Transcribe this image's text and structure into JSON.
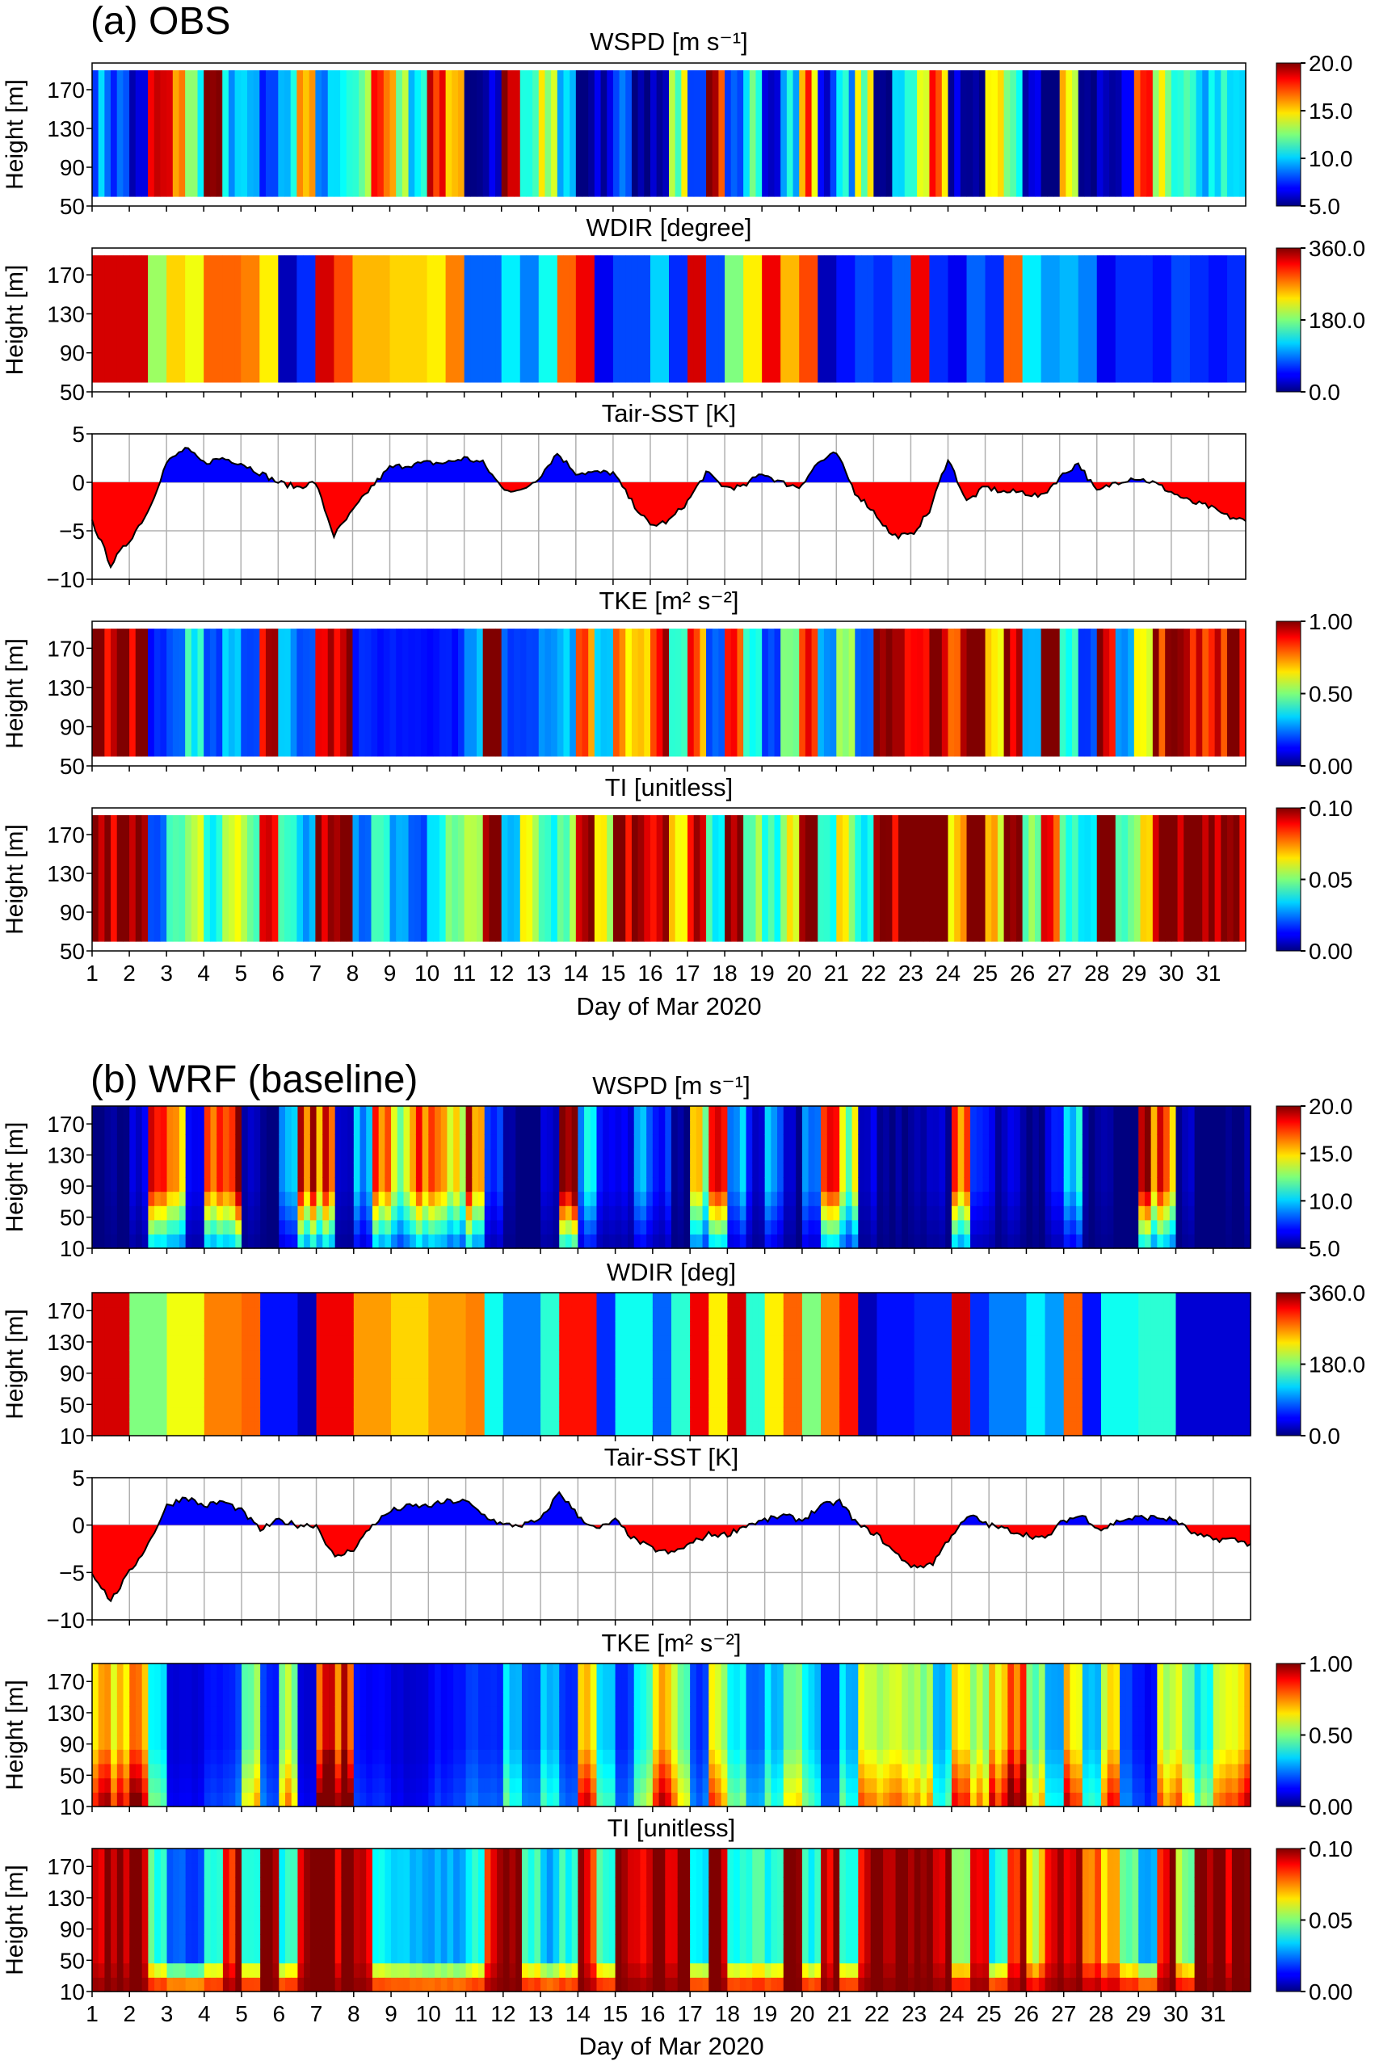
{
  "figure": {
    "panel_a_label": "(a) OBS",
    "panel_b_label": "(b) WRF (baseline)",
    "xlabel": "Day of Mar 2020",
    "x_ticks": [
      "1",
      "2",
      "3",
      "4",
      "5",
      "6",
      "7",
      "8",
      "9",
      "10",
      "11",
      "12",
      "13",
      "14",
      "15",
      "16",
      "17",
      "18",
      "19",
      "20",
      "21",
      "22",
      "23",
      "24",
      "25",
      "26",
      "27",
      "28",
      "29",
      "30",
      "31"
    ],
    "xlim": [
      1,
      32
    ],
    "x_step_days": 0.5
  },
  "chart_data": [
    {
      "id": "obs-wspd",
      "type": "heatmap",
      "title": "WSPD [m s⁻¹]",
      "ylabel": "Height [m]",
      "yticks": [
        "50",
        "90",
        "130",
        "170"
      ],
      "ylim": [
        50,
        197.5
      ],
      "heights": [
        60,
        190
      ],
      "clim": [
        5,
        20
      ],
      "cbar_ticks": [
        "5.0",
        "10.0",
        "15.0",
        "20.0"
      ],
      "values": [
        9,
        8,
        6,
        18,
        17,
        12,
        20,
        10,
        9,
        7,
        10,
        17,
        9,
        10,
        13,
        18,
        14,
        10,
        19,
        16,
        5,
        6,
        18,
        11,
        13,
        10,
        5,
        6,
        9,
        5,
        6,
        13,
        7,
        18,
        9,
        12,
        6,
        10,
        16,
        7,
        10,
        13,
        5,
        11,
        13,
        17,
        6,
        5,
        13,
        11,
        6,
        5,
        14,
        5,
        6,
        6,
        16,
        14,
        11,
        10,
        11,
        10
      ]
    },
    {
      "id": "obs-wdir",
      "type": "heatmap",
      "title": "WDIR [degree]",
      "ylabel": "Height [m]",
      "yticks": [
        "50",
        "90",
        "130",
        "170"
      ],
      "ylim": [
        50,
        197.5
      ],
      "heights": [
        60,
        190
      ],
      "clim": [
        0,
        360
      ],
      "cbar_ticks": [
        "0.0",
        "180.0",
        "360.0"
      ],
      "values": [
        330,
        330,
        330,
        190,
        240,
        220,
        280,
        280,
        270,
        230,
        20,
        60,
        330,
        290,
        250,
        250,
        240,
        240,
        230,
        270,
        80,
        80,
        130,
        90,
        140,
        280,
        320,
        40,
        70,
        70,
        120,
        60,
        330,
        70,
        180,
        230,
        320,
        250,
        290,
        20,
        50,
        70,
        60,
        80,
        320,
        60,
        40,
        80,
        60,
        280,
        130,
        100,
        110,
        90,
        40,
        60,
        60,
        50,
        70,
        60,
        50,
        60
      ]
    },
    {
      "id": "obs-tair",
      "type": "area",
      "title": "Tair-SST [K]",
      "yticks": [
        "−10",
        "−5",
        "0",
        "5"
      ],
      "ylim": [
        -10,
        5
      ],
      "positive_color": "#0000ff",
      "negative_color": "#ff0000",
      "values": [
        -4,
        -8.5,
        -6,
        -3,
        2,
        3.5,
        2,
        2.5,
        2,
        1,
        0,
        -0.5,
        0,
        -5.5,
        -3,
        -0.5,
        1.5,
        1.8,
        2,
        2,
        2.5,
        2,
        -0.5,
        -1,
        0.5,
        3,
        1,
        1,
        1,
        -2,
        -4.5,
        -4,
        -2,
        1,
        -0.5,
        -0.5,
        1,
        0,
        -0.5,
        2,
        3,
        -1,
        -3,
        -5.5,
        -5.5,
        -3,
        2.5,
        -2,
        -0.5,
        -1,
        -1,
        -1.5,
        0.5,
        2,
        -1,
        0,
        0.5,
        0,
        -1,
        -2,
        -2.5,
        -3.5,
        -4
      ]
    },
    {
      "id": "obs-tke",
      "type": "heatmap",
      "title": "TKE [m² s⁻²]",
      "ylabel": "Height [m]",
      "yticks": [
        "50",
        "90",
        "130",
        "170"
      ],
      "ylim": [
        50,
        197.5
      ],
      "heights": [
        60,
        190
      ],
      "clim": [
        0,
        1
      ],
      "cbar_ticks": [
        "0.00",
        "0.50",
        "1.00"
      ],
      "values": [
        1,
        1,
        1,
        0.15,
        0.2,
        0.4,
        0.2,
        0.35,
        0.2,
        1,
        0.3,
        0.2,
        1,
        1,
        0.15,
        0.15,
        0.15,
        0.15,
        0.15,
        0.15,
        0.3,
        1,
        0.2,
        0.2,
        0.3,
        0.3,
        0.8,
        0.3,
        0.7,
        0.7,
        0.9,
        0.4,
        0.8,
        0.2,
        0.8,
        0.4,
        0.2,
        0.5,
        0.9,
        0.3,
        0.5,
        0.2,
        1,
        1,
        1,
        1,
        0.9,
        1,
        0.6,
        1,
        0.3,
        1,
        0.4,
        0.2,
        1,
        0.3,
        0.6,
        0.9,
        1,
        0.9,
        0.9,
        1
      ]
    },
    {
      "id": "obs-ti",
      "type": "heatmap",
      "title": "TI [unitless]",
      "ylabel": "Height [m]",
      "yticks": [
        "50",
        "90",
        "130",
        "170"
      ],
      "ylim": [
        50,
        197.5
      ],
      "heights": [
        60,
        190
      ],
      "clim": [
        0,
        0.1
      ],
      "cbar_ticks": [
        "0.00",
        "0.05",
        "0.10"
      ],
      "values": [
        0.1,
        0.1,
        0.1,
        0.02,
        0.04,
        0.06,
        0.04,
        0.06,
        0.05,
        0.1,
        0.04,
        0.03,
        0.1,
        0.1,
        0.025,
        0.04,
        0.03,
        0.02,
        0.04,
        0.045,
        0.05,
        0.1,
        0.03,
        0.06,
        0.04,
        0.05,
        0.1,
        0.06,
        0.1,
        0.1,
        0.1,
        0.06,
        0.1,
        0.04,
        0.1,
        0.05,
        0.04,
        0.06,
        0.1,
        0.04,
        0.06,
        0.04,
        0.1,
        0.1,
        0.1,
        0.1,
        0.065,
        0.1,
        0.065,
        0.1,
        0.05,
        0.09,
        0.045,
        0.04,
        0.1,
        0.05,
        0.06,
        0.09,
        0.1,
        0.1,
        0.1,
        0.1
      ]
    },
    {
      "id": "wrf-wspd",
      "type": "heatmap",
      "title": "WSPD [m s⁻¹]",
      "ylabel": "Height [m]",
      "yticks": [
        "10",
        "50",
        "90",
        "130",
        "170"
      ],
      "ylim": [
        10,
        193
      ],
      "heights": [
        10,
        193
      ],
      "clim": [
        5,
        20
      ],
      "cbar_ticks": [
        "5.0",
        "10.0",
        "15.0",
        "20.0"
      ],
      "values": [
        5,
        5,
        6,
        18,
        17,
        7,
        16,
        19,
        6,
        5,
        10,
        18,
        17,
        6,
        10,
        16,
        14,
        16,
        18,
        14,
        17,
        7,
        5,
        5,
        6,
        19,
        10,
        7,
        6,
        9,
        7,
        5,
        14,
        17,
        10,
        7,
        9,
        6,
        9,
        18,
        13,
        6,
        5,
        5,
        6,
        6,
        16,
        7,
        6,
        6,
        5,
        7,
        10,
        5,
        5,
        5,
        18,
        17,
        6,
        5,
        5,
        5
      ]
    },
    {
      "id": "wrf-wdir",
      "type": "heatmap",
      "title": "WDIR [deg]",
      "ylabel": "Height [m]",
      "yticks": [
        "10",
        "50",
        "90",
        "130",
        "170"
      ],
      "ylim": [
        10,
        193
      ],
      "heights": [
        10,
        193
      ],
      "clim": [
        0,
        360
      ],
      "cbar_ticks": [
        "0.0",
        "180.0",
        "360.0"
      ],
      "values": [
        330,
        330,
        180,
        180,
        220,
        220,
        270,
        270,
        280,
        50,
        50,
        20,
        320,
        320,
        260,
        260,
        240,
        240,
        260,
        260,
        270,
        140,
        90,
        90,
        150,
        310,
        310,
        60,
        140,
        140,
        80,
        150,
        320,
        230,
        330,
        150,
        230,
        280,
        180,
        270,
        310,
        20,
        50,
        50,
        60,
        60,
        330,
        60,
        90,
        90,
        130,
        100,
        280,
        50,
        140,
        140,
        150,
        150,
        30,
        30,
        30,
        30
      ]
    },
    {
      "id": "wrf-tair",
      "type": "area",
      "title": "Tair-SST [K]",
      "yticks": [
        "−10",
        "−5",
        "0",
        "5"
      ],
      "ylim": [
        -10,
        5
      ],
      "positive_color": "#0000ff",
      "negative_color": "#ff0000",
      "values": [
        -5,
        -8,
        -5,
        -2,
        2,
        3,
        2,
        2.5,
        1.5,
        -0.5,
        0.5,
        0,
        0,
        -3.5,
        -2.5,
        0,
        1.5,
        2,
        2,
        2.5,
        2.5,
        1,
        0,
        0,
        0.5,
        3.5,
        1,
        -0.5,
        0.5,
        -1.5,
        -2.5,
        -3,
        -2,
        -1,
        -1,
        0,
        0.5,
        1,
        0.5,
        2,
        2.5,
        0,
        -1,
        -3,
        -4.5,
        -4,
        -1,
        1,
        0,
        -0.5,
        -1,
        -1.5,
        0.5,
        1,
        -0.5,
        0.5,
        0.8,
        0.8,
        0.5,
        -1,
        -1.5,
        -1.5,
        -2
      ]
    },
    {
      "id": "wrf-tke",
      "type": "heatmap",
      "title": "TKE [m² s⁻²]",
      "ylabel": "Height [m]",
      "yticks": [
        "10",
        "50",
        "90",
        "130",
        "170"
      ],
      "ylim": [
        10,
        193
      ],
      "heights": [
        10,
        193
      ],
      "clim": [
        0,
        1
      ],
      "cbar_ticks": [
        "0.00",
        "0.50",
        "1.00"
      ],
      "values": [
        0.8,
        0.8,
        0.8,
        0.4,
        0.1,
        0.1,
        0.15,
        0.2,
        0.6,
        0.2,
        0.6,
        0.1,
        1,
        1,
        0.15,
        0.15,
        0.1,
        0.1,
        0.15,
        0.15,
        0.2,
        0.2,
        0.4,
        0.2,
        0.4,
        0.2,
        0.75,
        0.4,
        0.2,
        0.45,
        0.75,
        0.6,
        0.2,
        0.7,
        0.4,
        0.25,
        0.4,
        0.6,
        0.4,
        0.2,
        0.4,
        0.75,
        0.6,
        0.7,
        0.65,
        0.4,
        0.8,
        0.6,
        0.8,
        0.9,
        0.6,
        0.3,
        0.8,
        0.4,
        0.75,
        0.2,
        0.15,
        0.7,
        0.65,
        0.45,
        0.75,
        0.75
      ]
    },
    {
      "id": "wrf-ti",
      "type": "heatmap",
      "title": "TI [unitless]",
      "ylabel": "Height [m]",
      "yticks": [
        "10",
        "50",
        "90",
        "130",
        "170"
      ],
      "ylim": [
        10,
        193
      ],
      "heights": [
        10,
        193
      ],
      "clim": [
        0,
        0.1
      ],
      "cbar_ticks": [
        "0.00",
        "0.05",
        "0.10"
      ],
      "values": [
        0.1,
        0.1,
        0.1,
        0.045,
        0.02,
        0.02,
        0.04,
        0.09,
        0.04,
        0.09,
        0.04,
        0.1,
        0.1,
        0.1,
        0.09,
        0.04,
        0.03,
        0.03,
        0.03,
        0.03,
        0.04,
        0.09,
        0.1,
        0.04,
        0.03,
        0.04,
        0.09,
        0.045,
        0.1,
        0.1,
        0.1,
        0.1,
        0.04,
        0.1,
        0.04,
        0.045,
        0.04,
        0.1,
        0.04,
        0.1,
        0.045,
        0.1,
        0.1,
        0.1,
        0.1,
        0.1,
        0.05,
        0.09,
        0.04,
        0.09,
        0.06,
        0.09,
        0.1,
        0.085,
        0.07,
        0.045,
        0.03,
        0.09,
        0.05,
        0.1,
        0.1,
        0.1
      ]
    }
  ]
}
